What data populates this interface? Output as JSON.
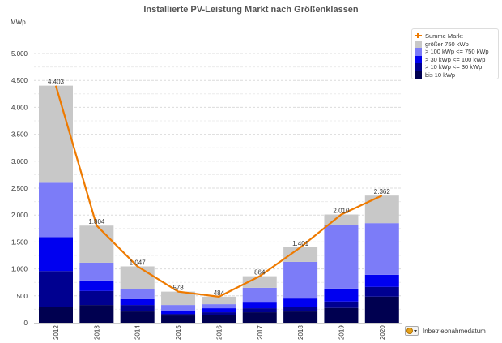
{
  "chart_data": {
    "type": "bar",
    "stacked": true,
    "title": "Installierte PV-Leistung Markt nach Größenklassen",
    "xlabel": "Inbetriebnahmedatum",
    "ylabel": "MWp",
    "ylim": [
      0,
      5000
    ],
    "yticks": [
      0,
      500,
      1000,
      1500,
      2000,
      2500,
      3000,
      3500,
      4000,
      4500,
      5000
    ],
    "ytick_labels": [
      "0",
      "500",
      "1.000",
      "1.500",
      "2.000",
      "2.500",
      "3.000",
      "3.500",
      "4.000",
      "4.500",
      "5.000"
    ],
    "grid": true,
    "legend_position": "top-right",
    "categories": [
      "2012",
      "2013",
      "2014",
      "2015",
      "2016",
      "2017",
      "2018",
      "2019",
      "2020"
    ],
    "series": [
      {
        "name": "bis 10 kWp",
        "color": "#000050",
        "values": [
          300,
          330,
          210,
          135,
          150,
          195,
          210,
          275,
          485
        ]
      },
      {
        "name": "> 10 kWp <= 30 kWp",
        "color": "#000090",
        "values": [
          660,
          260,
          120,
          30,
          45,
          75,
          90,
          120,
          180
        ]
      },
      {
        "name": "> 30 kWp <= 100 kWp",
        "color": "#0000f0",
        "values": [
          630,
          195,
          110,
          60,
          75,
          105,
          150,
          240,
          225
        ]
      },
      {
        "name": "> 100 kWp <= 750 kWp",
        "color": "#7c7cf8",
        "values": [
          1010,
          330,
          190,
          105,
          75,
          275,
          680,
          1175,
          960
        ]
      },
      {
        "name": "größer 750 kWp",
        "color": "#c8c8c8",
        "values": [
          1803,
          689,
          417,
          248,
          139,
          214,
          271,
          200,
          512
        ]
      }
    ],
    "line_series": {
      "name": "Summe Markt",
      "color": "#ee7a00",
      "values": [
        4403,
        1804,
        1047,
        578,
        484,
        864,
        1401,
        2010,
        2362
      ]
    },
    "data_labels": [
      "4.403",
      "1.804",
      "1.047",
      "578",
      "484",
      "864",
      "1.401",
      "2.010",
      "2.362"
    ]
  },
  "header": {
    "title": "Installierte PV-Leistung Markt nach Größenklassen",
    "unit": "MWp"
  },
  "legend": {
    "items": [
      {
        "label": "Summe Markt",
        "color": "#ee7a00",
        "kind": "line"
      },
      {
        "label": "größer 750 kWp",
        "color": "#c8c8c8",
        "kind": "box"
      },
      {
        "label": "> 100 kWp <= 750 kWp",
        "color": "#7c7cf8",
        "kind": "box"
      },
      {
        "label": "> 30 kWp <= 100 kWp",
        "color": "#0000f0",
        "kind": "box"
      },
      {
        "label": "> 10 kWp <= 30 kWp",
        "color": "#000090",
        "kind": "box"
      },
      {
        "label": "bis 10 kWp",
        "color": "#000050",
        "kind": "box"
      }
    ]
  },
  "dimension": {
    "label": "Inbetriebnahmedatum",
    "icon": "cycle-dimension-icon"
  }
}
